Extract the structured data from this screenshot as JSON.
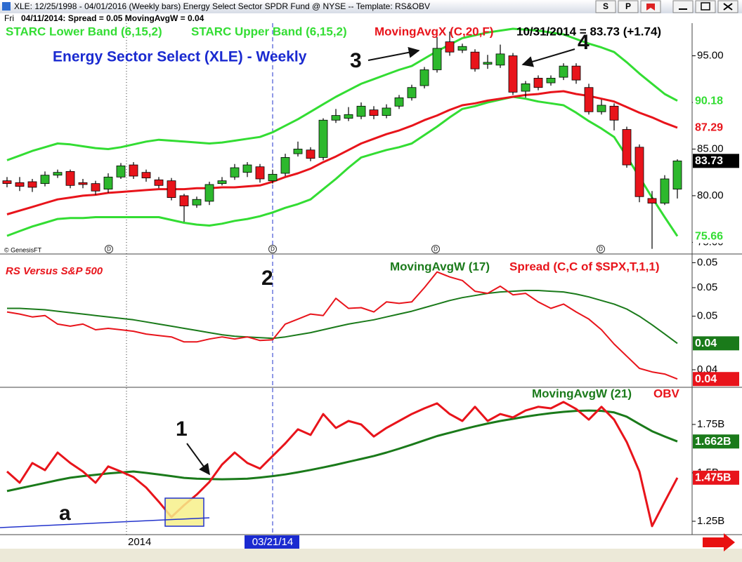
{
  "window": {
    "title": "XLE: 12/25/1998 - 04/01/2016 (Weekly bars)   Energy Select Sector SPDR Fund @ NYSE  --  Template: RS&OBV",
    "buttons": [
      "S",
      "P"
    ]
  },
  "status": {
    "day": "Fri",
    "text": "04/11/2014:  Spread = 0.05  MovingAvgW = 0.04"
  },
  "chart_data": [
    {
      "type": "candlestick",
      "title": "Energy Sector Select (XLE) - Weekly",
      "header_value": "10/31/2014 = 83.73 (+1.74)",
      "credit": "© GenesisFT",
      "annotations": [
        "3",
        "4"
      ],
      "markers": [
        "D",
        "D",
        "D",
        "D"
      ],
      "categories": [
        null,
        null,
        null,
        null,
        null,
        null,
        null,
        null,
        null,
        null,
        "2014",
        null,
        null,
        null,
        null,
        null,
        null,
        null,
        null,
        null,
        null,
        "03/21/14",
        null,
        null,
        null,
        null,
        null,
        null,
        null,
        null,
        null,
        null,
        null,
        null,
        null,
        null,
        null,
        null,
        null,
        null,
        null,
        null,
        null,
        null,
        null,
        null,
        null,
        null,
        null,
        null,
        null,
        null,
        null,
        null
      ],
      "open": [
        81.6,
        81.4,
        81.5,
        81.3,
        82.2,
        82.6,
        81.4,
        81.3,
        80.7,
        82.0,
        83.3,
        82.5,
        81.7,
        81.6,
        80.0,
        79.0,
        79.4,
        81.3,
        82.0,
        82.5,
        83.1,
        81.6,
        82.4,
        84.5,
        84.9,
        84.1,
        88.1,
        88.3,
        88.5,
        89.2,
        88.6,
        89.6,
        90.5,
        91.8,
        93.5,
        96.5,
        95.6,
        95.4,
        94.1,
        94.0,
        95.0,
        91.2,
        92.6,
        92.1,
        92.7,
        93.9,
        91.6,
        89.0,
        89.6,
        87.1,
        85.2,
        79.7,
        79.2,
        80.7
      ],
      "high": [
        82.0,
        82.0,
        81.8,
        82.6,
        82.8,
        82.8,
        81.8,
        81.6,
        82.4,
        83.5,
        83.6,
        82.8,
        82.0,
        81.9,
        80.2,
        79.9,
        81.5,
        82.0,
        83.4,
        83.6,
        83.4,
        82.8,
        84.5,
        85.8,
        85.2,
        88.3,
        89.3,
        89.5,
        90.0,
        89.6,
        89.8,
        90.8,
        91.9,
        93.8,
        97.0,
        97.6,
        96.3,
        95.7,
        95.1,
        96.2,
        95.3,
        92.3,
        92.9,
        92.9,
        94.2,
        94.2,
        92.0,
        90.3,
        89.9,
        87.4,
        85.5,
        80.5,
        82.2,
        83.9
      ],
      "low": [
        80.9,
        80.5,
        80.4,
        81.0,
        81.9,
        80.8,
        80.8,
        80.1,
        80.3,
        81.8,
        81.8,
        81.5,
        80.8,
        79.5,
        77.2,
        78.7,
        79.0,
        81.1,
        81.7,
        82.0,
        81.4,
        81.3,
        82.1,
        84.2,
        83.7,
        83.8,
        87.8,
        88.0,
        88.2,
        88.2,
        88.3,
        89.3,
        90.2,
        91.5,
        93.2,
        95.0,
        95.3,
        93.3,
        93.6,
        93.7,
        90.8,
        90.5,
        91.3,
        91.8,
        92.4,
        92.0,
        88.7,
        88.7,
        87.0,
        83.0,
        79.3,
        74.3,
        79.0,
        79.7
      ],
      "close": [
        81.3,
        81.0,
        80.9,
        82.2,
        82.5,
        81.1,
        81.2,
        80.5,
        82.0,
        83.2,
        82.1,
        81.9,
        81.1,
        79.8,
        78.9,
        79.6,
        81.2,
        81.6,
        83.0,
        83.3,
        81.8,
        82.3,
        84.1,
        85.0,
        84.0,
        88.1,
        88.6,
        88.7,
        89.6,
        88.6,
        89.4,
        90.5,
        91.6,
        93.5,
        95.8,
        95.4,
        96.0,
        93.6,
        94.3,
        95.2,
        91.1,
        92.0,
        91.6,
        92.6,
        93.9,
        92.4,
        89.0,
        89.7,
        88.1,
        83.3,
        79.9,
        79.2,
        81.8,
        83.73
      ],
      "up_color": "#2db82d",
      "down_color": "#e8141b",
      "last_label": "83.73",
      "series": [
        {
          "name": "STARC Lower Band (6,15,2)",
          "color": "#33dd33",
          "last_label": "75.66",
          "values": [
            75.7,
            76.2,
            76.7,
            77.1,
            77.5,
            77.6,
            77.6,
            77.7,
            77.7,
            77.7,
            77.7,
            77.7,
            77.7,
            77.4,
            77.1,
            76.9,
            76.8,
            77.0,
            77.3,
            77.5,
            77.8,
            78.2,
            78.7,
            79.1,
            79.6,
            80.7,
            81.8,
            83.0,
            84.1,
            84.5,
            84.9,
            85.2,
            85.6,
            86.5,
            87.4,
            88.4,
            89.3,
            89.6,
            90.0,
            90.3,
            90.6,
            90.4,
            90.1,
            89.9,
            89.7,
            88.9,
            88.0,
            87.2,
            86.3,
            84.2,
            82.0,
            79.8,
            77.7,
            75.66
          ]
        },
        {
          "name": "STARC Upper Band (6,15,2)",
          "color": "#33dd33",
          "last_label": "90.18",
          "values": [
            83.8,
            84.3,
            84.8,
            85.2,
            85.6,
            85.5,
            85.3,
            85.1,
            85.0,
            85.2,
            85.5,
            85.8,
            86.0,
            85.9,
            85.8,
            85.7,
            85.6,
            85.7,
            85.9,
            86.1,
            86.3,
            86.8,
            87.5,
            88.2,
            89.0,
            89.8,
            90.6,
            91.3,
            92.0,
            92.5,
            93.0,
            93.5,
            93.9,
            94.7,
            95.5,
            96.2,
            96.9,
            97.2,
            97.5,
            97.7,
            97.9,
            97.8,
            97.7,
            97.5,
            97.3,
            96.8,
            96.3,
            95.9,
            95.4,
            94.3,
            93.1,
            92.0,
            90.9,
            90.18
          ]
        },
        {
          "name": "MovingAvgX (C,20,F)",
          "color": "#e8141b",
          "last_label": "87.29",
          "values": [
            78.0,
            78.4,
            78.8,
            79.2,
            79.6,
            79.8,
            80.0,
            80.1,
            80.3,
            80.4,
            80.5,
            80.6,
            80.7,
            80.7,
            80.7,
            80.8,
            80.8,
            80.9,
            80.9,
            81.0,
            81.1,
            81.5,
            82.0,
            82.4,
            82.9,
            83.6,
            84.2,
            84.9,
            85.6,
            86.1,
            86.6,
            87.0,
            87.5,
            88.1,
            88.6,
            89.2,
            89.7,
            89.9,
            90.2,
            90.4,
            90.6,
            90.8,
            90.9,
            91.1,
            91.2,
            90.9,
            90.7,
            90.4,
            90.1,
            89.5,
            88.9,
            88.4,
            87.8,
            87.29
          ]
        }
      ],
      "ylim": [
        73.9,
        98.5
      ],
      "yticks": [
        {
          "value": 95,
          "label": "95.00"
        },
        {
          "value": 90,
          "label": "90.00"
        },
        {
          "value": 85,
          "label": "85.00"
        },
        {
          "value": 80,
          "label": "80.00"
        },
        {
          "value": 75,
          "label": "75.00"
        }
      ]
    },
    {
      "type": "line",
      "title": "RS Versus S&P 500",
      "annotations": [
        "2"
      ],
      "series": [
        {
          "name": "MovingAvgW (17)",
          "color": "#1a7a1a",
          "last_label": "0.04",
          "values": [
            0.0471,
            0.0471,
            0.047,
            0.0469,
            0.0467,
            0.0465,
            0.0463,
            0.0461,
            0.0459,
            0.0457,
            0.0455,
            0.0452,
            0.0449,
            0.0446,
            0.0443,
            0.044,
            0.0437,
            0.0434,
            0.0432,
            0.0431,
            0.043,
            0.0429,
            0.0431,
            0.0434,
            0.0437,
            0.0441,
            0.0445,
            0.0449,
            0.0452,
            0.0455,
            0.0459,
            0.0463,
            0.0467,
            0.0472,
            0.0477,
            0.0482,
            0.0486,
            0.0489,
            0.0492,
            0.0494,
            0.0495,
            0.0496,
            0.0496,
            0.0495,
            0.0494,
            0.0491,
            0.0487,
            0.0482,
            0.0477,
            0.047,
            0.046,
            0.0448,
            0.0435,
            0.0422
          ]
        },
        {
          "name": "Spread (C,C of $SPX,T,1,1)",
          "color": "#e8141b",
          "last_label": "0.04",
          "values": [
            0.0466,
            0.0463,
            0.0459,
            0.0461,
            0.0449,
            0.0446,
            0.0449,
            0.0441,
            0.0443,
            0.0441,
            0.0439,
            0.0435,
            0.0433,
            0.0431,
            0.0424,
            0.0424,
            0.0428,
            0.0431,
            0.0428,
            0.0431,
            0.0426,
            0.0427,
            0.0449,
            0.0456,
            0.0463,
            0.0461,
            0.0485,
            0.0471,
            0.0472,
            0.0466,
            0.048,
            0.0478,
            0.048,
            0.05,
            0.0522,
            0.0515,
            0.051,
            0.0495,
            0.0492,
            0.0502,
            0.049,
            0.0492,
            0.048,
            0.0471,
            0.0477,
            0.0466,
            0.0456,
            0.0441,
            0.0421,
            0.0404,
            0.0387,
            0.0382,
            0.0379,
            0.0372
          ]
        }
      ],
      "ylim": [
        0.03624,
        0.05442
      ],
      "yticks": [
        {
          "value": 0.0535,
          "label": "0.05"
        },
        {
          "value": 0.05,
          "label": "0.05"
        },
        {
          "value": 0.046,
          "label": "0.05"
        },
        {
          "value": 0.0385,
          "label": "0.04"
        }
      ]
    },
    {
      "type": "line",
      "annotations": [
        "1",
        "a"
      ],
      "series": [
        {
          "name": "MovingAvgW (21)",
          "color": "#1a7a1a",
          "last_label": "1.662B",
          "values": [
            1.406,
            1.42,
            1.434,
            1.448,
            1.462,
            1.475,
            1.483,
            1.49,
            1.497,
            1.502,
            1.507,
            1.5,
            1.492,
            1.483,
            1.474,
            1.47,
            1.468,
            1.467,
            1.468,
            1.47,
            1.476,
            1.483,
            1.492,
            1.503,
            1.515,
            1.528,
            1.542,
            1.557,
            1.572,
            1.587,
            1.605,
            1.625,
            1.646,
            1.668,
            1.69,
            1.707,
            1.724,
            1.74,
            1.755,
            1.768,
            1.779,
            1.79,
            1.8,
            1.808,
            1.815,
            1.82,
            1.822,
            1.82,
            1.812,
            1.79,
            1.752,
            1.715,
            1.688,
            1.662
          ]
        },
        {
          "name": "OBV",
          "color": "#e8141b",
          "last_label": "1.475B",
          "values": [
            1.507,
            1.449,
            1.551,
            1.514,
            1.605,
            1.551,
            1.507,
            1.449,
            1.533,
            1.507,
            1.478,
            1.424,
            1.351,
            1.272,
            1.333,
            1.388,
            1.453,
            1.543,
            1.605,
            1.551,
            1.522,
            1.587,
            1.652,
            1.725,
            1.696,
            1.804,
            1.732,
            1.768,
            1.75,
            1.688,
            1.732,
            1.768,
            1.804,
            1.833,
            1.859,
            1.804,
            1.768,
            1.841,
            1.768,
            1.804,
            1.786,
            1.822,
            1.841,
            1.833,
            1.866,
            1.83,
            1.775,
            1.841,
            1.775,
            1.659,
            1.507,
            1.225,
            1.351,
            1.475
          ]
        }
      ],
      "ylim": [
        1.181,
        1.931
      ],
      "yticks": [
        {
          "value": 1.75,
          "label": "1.75B"
        },
        {
          "value": 1.5,
          "label": "1.5B"
        },
        {
          "value": 1.25,
          "label": "1.25B"
        }
      ]
    }
  ]
}
